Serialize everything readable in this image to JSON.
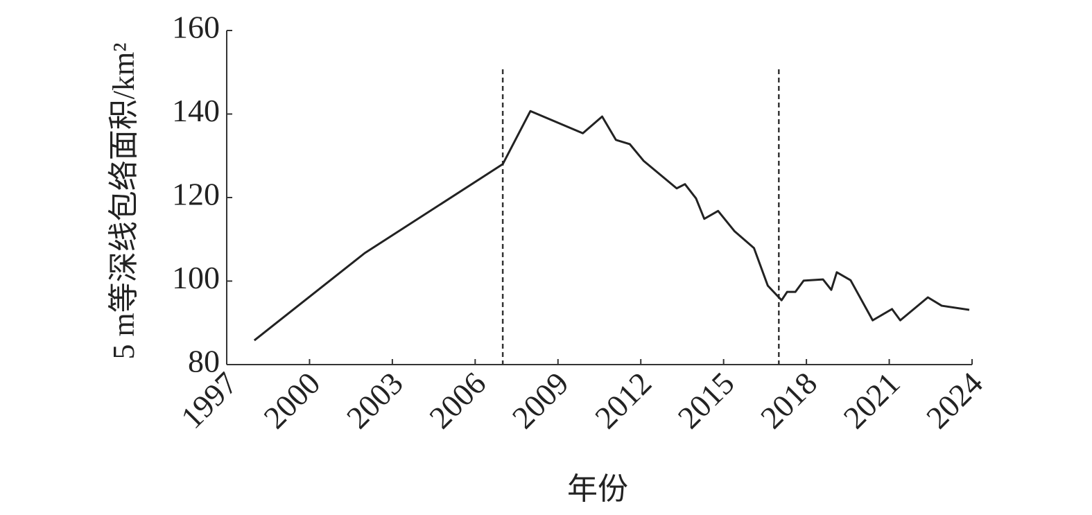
{
  "chart_data": {
    "type": "line",
    "x_label": "年份",
    "y_label": "5 m等深线包络面积/km²",
    "x": [
      1998.0,
      2002.0,
      2007.0,
      2008.0,
      2009.9,
      2010.6,
      2011.1,
      2011.6,
      2012.1,
      2013.3,
      2013.6,
      2014.0,
      2014.3,
      2014.8,
      2015.4,
      2016.1,
      2016.6,
      2017.1,
      2017.3,
      2017.6,
      2017.9,
      2018.6,
      2018.9,
      2019.1,
      2019.6,
      2020.4,
      2021.1,
      2021.4,
      2022.4,
      2022.9,
      2023.9
    ],
    "series": [
      {
        "color": "#222222",
        "values": [
          85.8,
          106.7,
          128.0,
          140.7,
          135.4,
          139.4,
          133.8,
          132.8,
          128.8,
          122.2,
          123.2,
          119.8,
          114.9,
          116.8,
          111.9,
          107.9,
          98.9,
          95.4,
          97.4,
          97.4,
          100.1,
          100.4,
          97.9,
          102.1,
          100.2,
          90.6,
          93.3,
          90.6,
          96.1,
          94.1,
          93.1
        ]
      }
    ],
    "reference_lines": [
      2007,
      2017
    ],
    "xlim": [
      1997,
      2024
    ],
    "xticks": [
      1997,
      2000,
      2003,
      2006,
      2009,
      2012,
      2015,
      2018,
      2021,
      2024
    ],
    "ylim": [
      80,
      160
    ],
    "yticks": [
      80,
      100,
      120,
      140,
      160
    ]
  }
}
